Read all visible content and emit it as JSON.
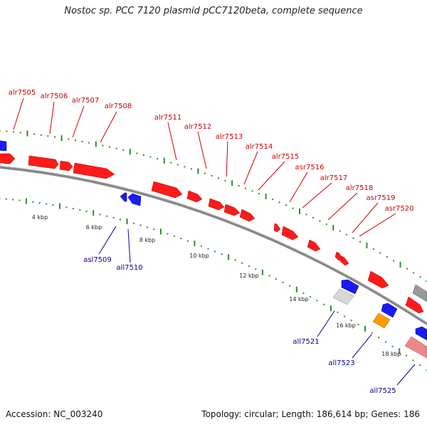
{
  "title": "Nostoc sp. PCC 7120 plasmid pCC7120beta, complete sequence",
  "footer": {
    "accession": "Accession: NC_003240",
    "summary": "Topology: circular; Length: 186,614 bp; Genes: 186"
  },
  "colors": {
    "forward_gene": "#ff1a1a",
    "reverse_gene": "#1a1aff",
    "label_forward": "#cc0000",
    "label_reverse": "#000099",
    "tick": "#2e8b2e",
    "backbone": "#888888",
    "gene_gray": "#999999",
    "gene_lightgray": "#d8d8d8",
    "gene_orange": "#ff9900",
    "gene_pink": "#ee8888"
  },
  "kbp_labels": [
    "4 kbp",
    "6 kbp",
    "8 kbp",
    "10 kbp",
    "12 kbp",
    "14 kbp",
    "16 kbp",
    "18 kbp"
  ],
  "forward_labels": [
    "alr7505",
    "alr7506",
    "alr7507",
    "alr7508",
    "alr7511",
    "alr7512",
    "alr7513",
    "alr7514",
    "alr7515",
    "asr7516",
    "alr7517",
    "alr7518",
    "asr7519",
    "asr7520"
  ],
  "reverse_labels": [
    "asl7509",
    "all7510",
    "all7521",
    "all7523",
    "all7525"
  ]
}
